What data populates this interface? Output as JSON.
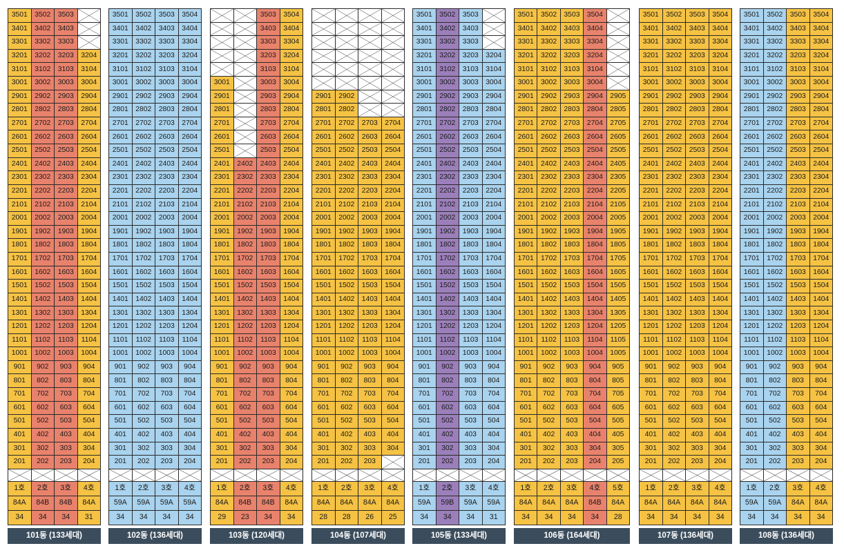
{
  "floors": [
    35,
    34,
    33,
    32,
    31,
    30,
    29,
    28,
    27,
    26,
    25,
    24,
    23,
    22,
    21,
    20,
    19,
    18,
    17,
    16,
    15,
    14,
    13,
    12,
    11,
    10,
    9,
    8,
    7,
    6,
    5,
    4,
    3,
    2
  ],
  "colors": {
    "y": "#f5c243",
    "b": "#a9d3ee",
    "r": "#e9826c",
    "p": "#9b7fba",
    "footer": "#3b4d5c"
  },
  "buildings": [
    {
      "label": "101동 (133세대)",
      "units": [
        "1호",
        "2호",
        "3호",
        "4호"
      ],
      "unit_colors": [
        "y",
        "r",
        "r",
        "y"
      ],
      "types": [
        "84A",
        "84B",
        "84B",
        "84A"
      ],
      "counts": [
        "34",
        "34",
        "34",
        "31"
      ],
      "overrides": {
        "35": [
          "y",
          "r",
          "r",
          "x"
        ],
        "34": [
          "y",
          "r",
          "r",
          "x"
        ],
        "33": [
          "y",
          "r",
          "r",
          "x"
        ]
      }
    },
    {
      "label": "102동 (136세대)",
      "units": [
        "1호",
        "2호",
        "3호",
        "4호"
      ],
      "unit_colors": [
        "b",
        "b",
        "b",
        "b"
      ],
      "types": [
        "59A",
        "59A",
        "59A",
        "59A"
      ],
      "counts": [
        "34",
        "34",
        "34",
        "34"
      ],
      "overrides": {}
    },
    {
      "label": "103동 (120세대)",
      "units": [
        "1호",
        "2호",
        "3호",
        "4호"
      ],
      "unit_colors": [
        "y",
        "r",
        "r",
        "y"
      ],
      "types": [
        "84A",
        "84B",
        "84B",
        "84A"
      ],
      "counts": [
        "29",
        "23",
        "34",
        "34"
      ],
      "overrides": {
        "35": [
          "x",
          "x",
          "r",
          "y"
        ],
        "34": [
          "x",
          "x",
          "r",
          "y"
        ],
        "33": [
          "x",
          "x",
          "r",
          "y"
        ],
        "32": [
          "x",
          "x",
          "r",
          "y"
        ],
        "31": [
          "x",
          "x",
          "r",
          "y"
        ],
        "30": [
          "y",
          "x",
          "r",
          "y"
        ],
        "29": [
          "y",
          "x",
          "r",
          "y"
        ],
        "28": [
          "y",
          "x",
          "r",
          "y"
        ],
        "27": [
          "y",
          "x",
          "r",
          "y"
        ],
        "26": [
          "y",
          "x",
          "r",
          "y"
        ],
        "25": [
          "y",
          "x",
          "r",
          "y"
        ]
      }
    },
    {
      "label": "104동 (107세대)",
      "units": [
        "1호",
        "2호",
        "3호",
        "4호"
      ],
      "unit_colors": [
        "y",
        "y",
        "y",
        "y"
      ],
      "types": [
        "84A",
        "84A",
        "84A",
        "84A"
      ],
      "counts": [
        "28",
        "28",
        "26",
        "25"
      ],
      "overrides": {
        "35": [
          "x",
          "x",
          "x",
          "x"
        ],
        "34": [
          "x",
          "x",
          "x",
          "x"
        ],
        "33": [
          "x",
          "x",
          "x",
          "x"
        ],
        "32": [
          "x",
          "x",
          "x",
          "x"
        ],
        "31": [
          "x",
          "x",
          "x",
          "x"
        ],
        "30": [
          "x",
          "x",
          "x",
          "x"
        ],
        "29": [
          "y",
          "y",
          "x",
          "x"
        ],
        "28": [
          "y",
          "y",
          "x",
          "x"
        ],
        "2": [
          "y",
          "y",
          "y",
          "x"
        ]
      }
    },
    {
      "label": "105동 (133세대)",
      "units": [
        "1호",
        "2호",
        "3호",
        "4호"
      ],
      "unit_colors": [
        "b",
        "p",
        "b",
        "b"
      ],
      "types": [
        "59A",
        "59B",
        "59A",
        "59A"
      ],
      "counts": [
        "34",
        "34",
        "34",
        "31"
      ],
      "overrides": {
        "35": [
          "b",
          "p",
          "b",
          "x"
        ],
        "34": [
          "b",
          "p",
          "b",
          "x"
        ],
        "33": [
          "b",
          "p",
          "b",
          "x"
        ]
      }
    },
    {
      "label": "106동 (164세대)",
      "units": [
        "1호",
        "2호",
        "3호",
        "4호",
        "5호"
      ],
      "unit_colors": [
        "y",
        "y",
        "y",
        "r",
        "y"
      ],
      "types": [
        "84A",
        "84A",
        "84A",
        "84B",
        "84A"
      ],
      "counts": [
        "34",
        "34",
        "34",
        "34",
        "28"
      ],
      "overrides": {
        "35": [
          "y",
          "y",
          "y",
          "r",
          "x"
        ],
        "34": [
          "y",
          "y",
          "y",
          "r",
          "x"
        ],
        "33": [
          "y",
          "y",
          "y",
          "r",
          "x"
        ],
        "32": [
          "y",
          "y",
          "y",
          "r",
          "x"
        ],
        "31": [
          "y",
          "y",
          "y",
          "r",
          "x"
        ],
        "30": [
          "y",
          "y",
          "y",
          "r",
          "x"
        ]
      }
    },
    {
      "label": "107동 (136세대)",
      "units": [
        "1호",
        "2호",
        "3호",
        "4호"
      ],
      "unit_colors": [
        "y",
        "y",
        "y",
        "y"
      ],
      "types": [
        "84A",
        "84A",
        "84A",
        "84A"
      ],
      "counts": [
        "34",
        "34",
        "34",
        "34"
      ],
      "overrides": {}
    },
    {
      "label": "108동 (136세대)",
      "units": [
        "1호",
        "2호",
        "3호",
        "4호"
      ],
      "unit_colors": [
        "b",
        "b",
        "y",
        "y"
      ],
      "types": [
        "59A",
        "59A",
        "84A",
        "84A"
      ],
      "counts": [
        "34",
        "34",
        "34",
        "34"
      ],
      "overrides": {}
    }
  ]
}
